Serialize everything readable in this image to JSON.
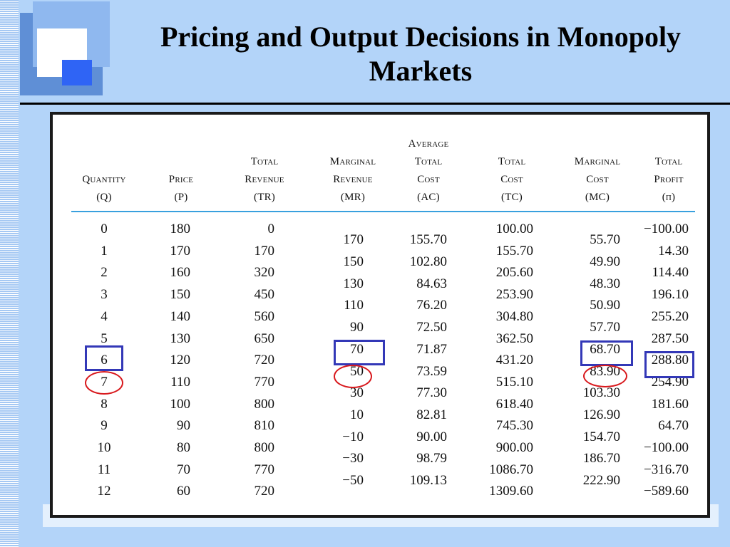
{
  "title": "Pricing and Output Decisions in Monopoly Markets",
  "headers": [
    [
      "Quantity",
      "(Q)"
    ],
    [
      "Price",
      "(P)"
    ],
    [
      "Total",
      "Revenue",
      "(TR)"
    ],
    [
      "Marginal",
      "Revenue",
      "(MR)"
    ],
    [
      "Average",
      "Total",
      "Cost",
      "(AC)"
    ],
    [
      "Total",
      "Cost",
      "(TC)"
    ],
    [
      "Marginal",
      "Cost",
      "(MC)"
    ],
    [
      "Total",
      "Profit",
      "(π)"
    ]
  ],
  "columns": {
    "quantity": [
      "0",
      "1",
      "2",
      "3",
      "4",
      "5",
      "6",
      "7",
      "8",
      "9",
      "10",
      "11",
      "12"
    ],
    "price": [
      "180",
      "170",
      "160",
      "150",
      "140",
      "130",
      "120",
      "110",
      "100",
      "90",
      "80",
      "70",
      "60"
    ],
    "total_revenue": [
      "0",
      "170",
      "320",
      "450",
      "560",
      "650",
      "720",
      "770",
      "800",
      "810",
      "800",
      "770",
      "720"
    ],
    "marginal_revenue": [
      "170",
      "150",
      "130",
      "110",
      "90",
      "70",
      "50",
      "30",
      "10",
      "−10",
      "−30",
      "−50"
    ],
    "average_total_cost": [
      "155.70",
      "102.80",
      "84.63",
      "76.20",
      "72.50",
      "71.87",
      "73.59",
      "77.30",
      "82.81",
      "90.00",
      "98.79",
      "109.13"
    ],
    "total_cost": [
      "100.00",
      "155.70",
      "205.60",
      "253.90",
      "304.80",
      "362.50",
      "431.20",
      "515.10",
      "618.40",
      "745.30",
      "900.00",
      "1086.70",
      "1309.60"
    ],
    "marginal_cost": [
      "55.70",
      "49.90",
      "48.30",
      "50.90",
      "57.70",
      "68.70",
      "83.90",
      "103.30",
      "126.90",
      "154.70",
      "186.70",
      "222.90"
    ],
    "total_profit": [
      "−100.00",
      "14.30",
      "114.40",
      "196.10",
      "255.20",
      "287.50",
      "288.80",
      "254.90",
      "181.60",
      "64.70",
      "−100.00",
      "−316.70",
      "−589.60"
    ]
  },
  "colors": {
    "box": "#3338b7",
    "circle": "#d8181c",
    "rule": "#39a0de"
  }
}
